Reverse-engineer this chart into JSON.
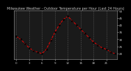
{
  "title": "Milwaukee Weather - Outdoor Temperature per Hour (Last 24 Hours)",
  "x_values": [
    0,
    1,
    2,
    3,
    4,
    5,
    6,
    7,
    8,
    9,
    10,
    11,
    12,
    13,
    14,
    15,
    16,
    17,
    18,
    19,
    20,
    21,
    22,
    23
  ],
  "y_values": [
    32,
    30,
    27,
    24,
    22,
    21,
    20,
    23,
    29,
    35,
    40,
    44,
    46,
    43,
    40,
    37,
    34,
    31,
    28,
    26,
    24,
    23,
    21,
    20
  ],
  "ylim": [
    16,
    50
  ],
  "xlim": [
    -0.5,
    23.5
  ],
  "line_color": "#ff0000",
  "marker_color": "#000000",
  "bg_color": "#000000",
  "plot_bg_color": "#1a1a1a",
  "grid_color": "#555555",
  "title_color": "#cccccc",
  "tick_color": "#cccccc",
  "title_fontsize": 3.5,
  "tick_fontsize": 3.0,
  "ytick_values": [
    20,
    25,
    30,
    35,
    40,
    45,
    50
  ],
  "xtick_values": [
    0,
    3,
    6,
    9,
    12,
    15,
    18,
    21
  ],
  "spine_color": "#888888"
}
